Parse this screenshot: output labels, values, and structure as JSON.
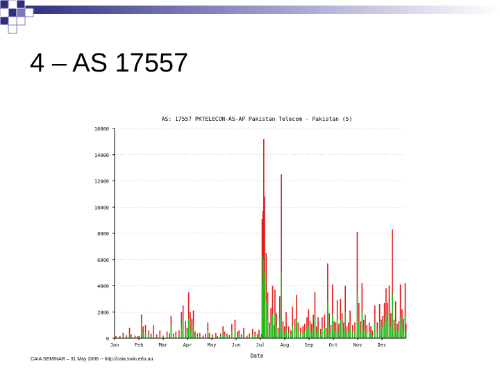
{
  "slide": {
    "title": "4 – AS 17557",
    "footer": "CAIA SEMINAR – 31 May 2006 -- http://caia.swin.edu.au"
  },
  "colors": {
    "accent": "#e01b1b",
    "secondary": "#16c016",
    "deco": "#3b3b8c"
  },
  "chart_data": {
    "type": "bar",
    "title": "AS: 17557 PKTELECON-AS-AP Pakistan Telecom - Pakistan (5)",
    "xlabel": "Date",
    "ylabel": "",
    "ylim": [
      0,
      16000
    ],
    "yticks": [
      0,
      2000,
      4000,
      6000,
      8000,
      10000,
      12000,
      14000,
      16000
    ],
    "ytick_labels": [
      "0",
      "2000",
      "4000",
      "6000",
      "8000",
      "10000",
      "12000",
      "14000",
      "16000"
    ],
    "xticks": [
      "Jan",
      "Feb",
      "Mar",
      "Apr",
      "May",
      "Jun",
      "Jul",
      "Aug",
      "Sep",
      "Oct",
      "Nov",
      "Dec"
    ],
    "grid": true,
    "legend": "none",
    "series_colors": [
      "#e01b1b",
      "#16c016"
    ],
    "x_range": [
      0,
      365
    ],
    "spikes": [
      [
        1,
        150,
        60
      ],
      [
        6,
        180,
        80
      ],
      [
        10,
        420,
        150
      ],
      [
        14,
        250,
        90
      ],
      [
        18,
        800,
        300
      ],
      [
        20,
        300,
        110
      ],
      [
        25,
        200,
        90
      ],
      [
        28,
        150,
        60
      ],
      [
        30,
        180,
        70
      ],
      [
        33,
        1800,
        1200
      ],
      [
        35,
        900,
        400
      ],
      [
        38,
        1000,
        500
      ],
      [
        42,
        600,
        250
      ],
      [
        45,
        350,
        150
      ],
      [
        48,
        1000,
        400
      ],
      [
        52,
        300,
        120
      ],
      [
        56,
        600,
        250
      ],
      [
        60,
        200,
        80
      ],
      [
        65,
        500,
        200
      ],
      [
        68,
        350,
        150
      ],
      [
        70,
        1700,
        1000
      ],
      [
        73,
        350,
        150
      ],
      [
        76,
        500,
        250
      ],
      [
        80,
        600,
        200
      ],
      [
        83,
        2000,
        900
      ],
      [
        85,
        2500,
        1400
      ],
      [
        88,
        1300,
        700
      ],
      [
        90,
        800,
        400
      ],
      [
        92,
        3500,
        1500
      ],
      [
        94,
        2000,
        600
      ],
      [
        96,
        1500,
        500
      ],
      [
        98,
        2100,
        1200
      ],
      [
        100,
        500,
        200
      ],
      [
        103,
        350,
        150
      ],
      [
        106,
        400,
        150
      ],
      [
        110,
        200,
        80
      ],
      [
        113,
        350,
        120
      ],
      [
        116,
        1200,
        600
      ],
      [
        118,
        400,
        150
      ],
      [
        122,
        300,
        120
      ],
      [
        126,
        400,
        150
      ],
      [
        128,
        150,
        60
      ],
      [
        132,
        350,
        150
      ],
      [
        135,
        900,
        400
      ],
      [
        137,
        500,
        200
      ],
      [
        140,
        350,
        150
      ],
      [
        143,
        250,
        100
      ],
      [
        146,
        1100,
        500
      ],
      [
        150,
        1400,
        600
      ],
      [
        153,
        500,
        200
      ],
      [
        155,
        600,
        250
      ],
      [
        158,
        300,
        120
      ],
      [
        161,
        800,
        300
      ],
      [
        165,
        200,
        80
      ],
      [
        168,
        350,
        150
      ],
      [
        172,
        700,
        300
      ],
      [
        175,
        500,
        200
      ],
      [
        178,
        300,
        120
      ],
      [
        180,
        650,
        250
      ],
      [
        183,
        300,
        120
      ],
      [
        184,
        9100,
        4200
      ],
      [
        185,
        9700,
        6300
      ],
      [
        186,
        15200,
        6000
      ],
      [
        187,
        10800,
        5000
      ],
      [
        189,
        6500,
        2800
      ],
      [
        191,
        3500,
        1500
      ],
      [
        193,
        1200,
        600
      ],
      [
        195,
        2300,
        1000
      ],
      [
        197,
        4000,
        1800
      ],
      [
        199,
        1000,
        400
      ],
      [
        200,
        3700,
        1900
      ],
      [
        202,
        1900,
        900
      ],
      [
        204,
        800,
        300
      ],
      [
        206,
        3200,
        1600
      ],
      [
        208,
        12500,
        5000
      ],
      [
        210,
        1300,
        600
      ],
      [
        212,
        900,
        400
      ],
      [
        214,
        2000,
        700
      ],
      [
        217,
        900,
        400
      ],
      [
        220,
        600,
        250
      ],
      [
        222,
        2400,
        900
      ],
      [
        225,
        1500,
        600
      ],
      [
        227,
        3300,
        1400
      ],
      [
        229,
        1200,
        500
      ],
      [
        232,
        800,
        300
      ],
      [
        235,
        900,
        400
      ],
      [
        237,
        1100,
        500
      ],
      [
        240,
        1600,
        700
      ],
      [
        242,
        2200,
        900
      ],
      [
        244,
        1300,
        500
      ],
      [
        246,
        1100,
        500
      ],
      [
        248,
        1800,
        800
      ],
      [
        250,
        3500,
        1600
      ],
      [
        252,
        900,
        400
      ],
      [
        254,
        1600,
        700
      ],
      [
        257,
        700,
        300
      ],
      [
        259,
        1600,
        700
      ],
      [
        262,
        1800,
        800
      ],
      [
        264,
        800,
        300
      ],
      [
        266,
        5700,
        2800
      ],
      [
        268,
        1900,
        900
      ],
      [
        270,
        1000,
        400
      ],
      [
        272,
        4100,
        1800
      ],
      [
        274,
        1300,
        500
      ],
      [
        276,
        1200,
        600
      ],
      [
        278,
        2900,
        1500
      ],
      [
        280,
        1100,
        500
      ],
      [
        282,
        3000,
        1400
      ],
      [
        284,
        1900,
        700
      ],
      [
        286,
        1200,
        500
      ],
      [
        288,
        4000,
        2000
      ],
      [
        290,
        900,
        400
      ],
      [
        292,
        1200,
        500
      ],
      [
        294,
        2100,
        900
      ],
      [
        297,
        1000,
        400
      ],
      [
        300,
        1200,
        500
      ],
      [
        303,
        8100,
        3500
      ],
      [
        305,
        2700,
        1300
      ],
      [
        307,
        1300,
        600
      ],
      [
        309,
        4200,
        2000
      ],
      [
        311,
        1400,
        600
      ],
      [
        313,
        1800,
        700
      ],
      [
        315,
        1000,
        400
      ],
      [
        318,
        1200,
        500
      ],
      [
        320,
        900,
        400
      ],
      [
        322,
        600,
        200
      ],
      [
        325,
        2500,
        1100
      ],
      [
        328,
        1200,
        500
      ],
      [
        331,
        2600,
        1300
      ],
      [
        333,
        1400,
        600
      ],
      [
        335,
        1700,
        800
      ],
      [
        337,
        2700,
        1200
      ],
      [
        339,
        3800,
        1700
      ],
      [
        341,
        2700,
        1300
      ],
      [
        343,
        4000,
        1900
      ],
      [
        345,
        1900,
        900
      ],
      [
        347,
        8300,
        3400
      ],
      [
        349,
        1400,
        600
      ],
      [
        351,
        2800,
        1300
      ],
      [
        353,
        1100,
        500
      ],
      [
        355,
        1300,
        600
      ],
      [
        357,
        4100,
        1600
      ],
      [
        359,
        2200,
        900
      ],
      [
        361,
        1500,
        600
      ],
      [
        363,
        4200,
        1700
      ],
      [
        364,
        1100,
        500
      ]
    ]
  }
}
